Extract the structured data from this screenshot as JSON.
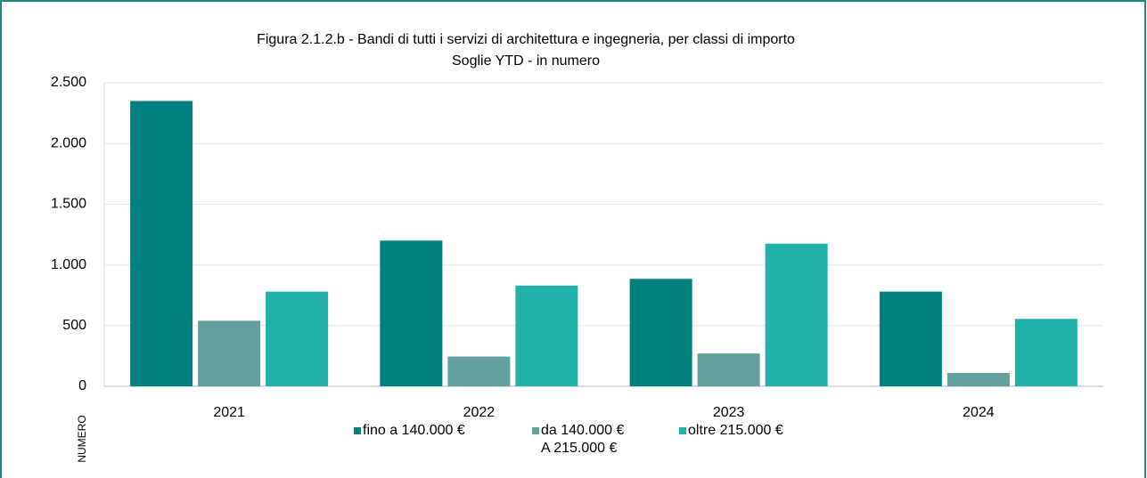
{
  "chart_data": {
    "type": "bar",
    "title": "Figura 2.1.2.b - Bandi di tutti i servizi di architettura e ingegneria, per classi di importo",
    "subtitle": "Soglie YTD - in numero",
    "y_label": "NUMERO",
    "categories": [
      "2021",
      "2022",
      "2023",
      "2024"
    ],
    "series": [
      {
        "name": "fino a 140.000 €",
        "color": "#008080",
        "values": [
          2350,
          1200,
          885,
          780
        ]
      },
      {
        "name": "da 140.000 €\nA 215.000 €",
        "color": "#62a09e",
        "values": [
          540,
          245,
          270,
          110
        ]
      },
      {
        "name": "oltre 215.000 €",
        "color": "#20b2aa",
        "values": [
          780,
          830,
          1175,
          555
        ]
      }
    ],
    "ylim": [
      0,
      2500
    ],
    "yticks": [
      0,
      500,
      {
        "value": 1000,
        "label": "1.000"
      },
      {
        "value": 1500,
        "label": "1.500"
      },
      {
        "value": 2000,
        "label": "2.000"
      },
      {
        "value": 2500,
        "label": "2.500"
      }
    ],
    "grid": true,
    "legend": "bottom"
  }
}
